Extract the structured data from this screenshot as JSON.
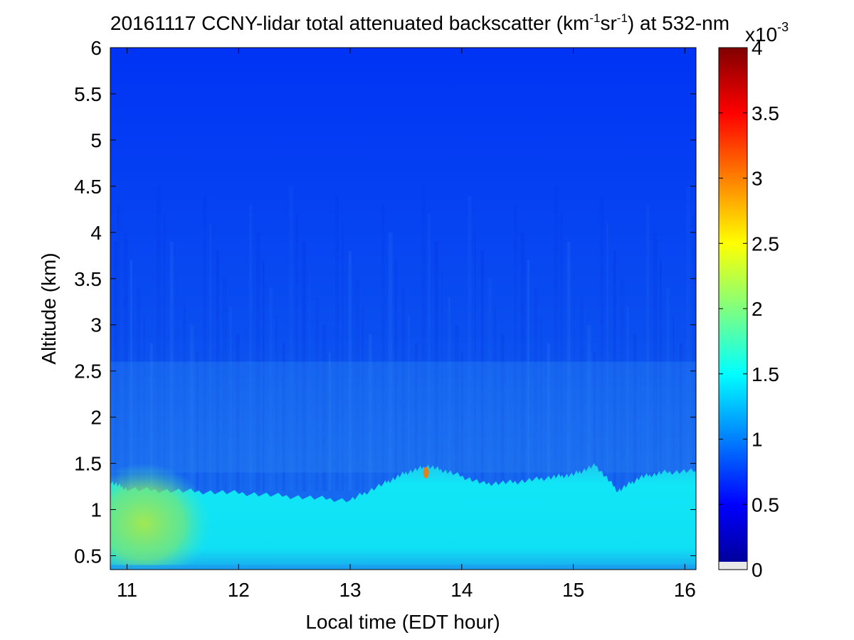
{
  "chart_data": {
    "type": "heatmap",
    "title": {
      "prefix": "20161117 CCNY-lidar total attenuated backscatter (km",
      "sup1": "-1",
      "mid": "sr",
      "sup2": "-1",
      "suffix": ") at 532-nm"
    },
    "xlabel": "Local time (EDT hour)",
    "ylabel": "Altitude (km)",
    "xlim": [
      10.85,
      16.1
    ],
    "ylim": [
      0.35,
      6
    ],
    "xticks": [
      "11",
      "12",
      "13",
      "14",
      "15",
      "16"
    ],
    "yticks": [
      "0.5",
      "1",
      "1.5",
      "2",
      "2.5",
      "3",
      "3.5",
      "4",
      "4.5",
      "5",
      "5.5",
      "6"
    ],
    "colorbar": {
      "clim": [
        0,
        4
      ],
      "ticks": [
        "0",
        "0.5",
        "1",
        "1.5",
        "2",
        "2.5",
        "3",
        "3.5",
        "4"
      ],
      "exponent_base": "x10",
      "exponent": "-3",
      "colormap": "jet"
    },
    "boundary_layer_top": {
      "time": [
        10.85,
        11.0,
        11.5,
        12.0,
        12.5,
        13.0,
        13.3,
        13.5,
        13.7,
        13.9,
        14.2,
        14.5,
        14.8,
        15.0,
        15.2,
        15.4,
        15.6,
        15.8,
        16.1
      ],
      "altitude": [
        1.3,
        1.22,
        1.2,
        1.18,
        1.14,
        1.1,
        1.28,
        1.4,
        1.47,
        1.4,
        1.28,
        1.3,
        1.35,
        1.38,
        1.48,
        1.2,
        1.35,
        1.4,
        1.42
      ]
    },
    "backscatter_x1e-3": {
      "free_troposphere_top": 0.55,
      "free_troposphere_mid": 0.75,
      "residual_layer_2km": 0.9,
      "boundary_layer": 1.55,
      "boundary_layer_morning_max": 2.05,
      "peak_spot": 3.4
    }
  }
}
